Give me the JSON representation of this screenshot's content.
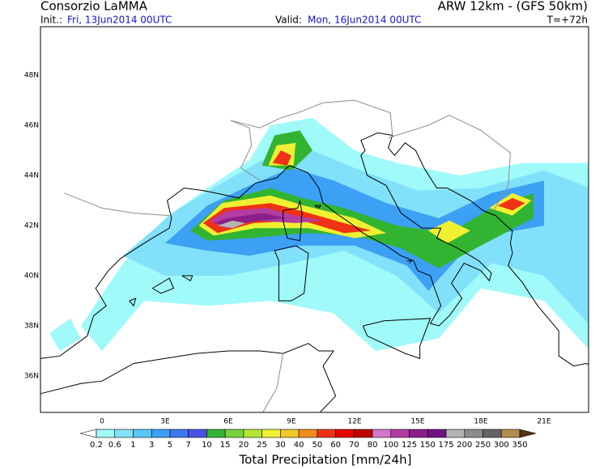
{
  "header": {
    "left_title": "Consorzio LaMMA",
    "right_title": "ARW 12km - (GFS 50km)",
    "init_label": "Init.:",
    "init_time": "Fri, 13Jun2014 00UTC",
    "valid_label": "Valid:",
    "valid_time": "Mon, 16Jun2014 00UTC",
    "forecast_step": "T=+72h"
  },
  "map": {
    "lat_labels": [
      "48N",
      "46N",
      "44N",
      "42N",
      "40N",
      "38N",
      "36N"
    ],
    "lon_labels": [
      "0",
      "3E",
      "6E",
      "9E",
      "12E",
      "15E",
      "18E",
      "21E"
    ]
  },
  "colorbar": {
    "levels": [
      0.2,
      0.6,
      1,
      3,
      5,
      7,
      10,
      15,
      20,
      25,
      30,
      40,
      50,
      60,
      70,
      80,
      100,
      125,
      150,
      175,
      200,
      250,
      300,
      350
    ],
    "under_color": "#ffffff",
    "colors": [
      "#a0fafa",
      "#82e1fa",
      "#5ac8fa",
      "#3ca0f5",
      "#3c78f0",
      "#4b50e6",
      "#32b432",
      "#78d23c",
      "#b4e632",
      "#f0f032",
      "#f0c828",
      "#f08c1e",
      "#f03214",
      "#e60000",
      "#be0000",
      "#d278c8",
      "#b43ca0",
      "#8c1e8c",
      "#6e1482",
      "#b4b4b4",
      "#8c8c8c",
      "#646464",
      "#b48c50",
      "#8c6428",
      "#6e4614"
    ],
    "over_color": "#503214",
    "title": "Total Precipitation [mm/24h]"
  }
}
